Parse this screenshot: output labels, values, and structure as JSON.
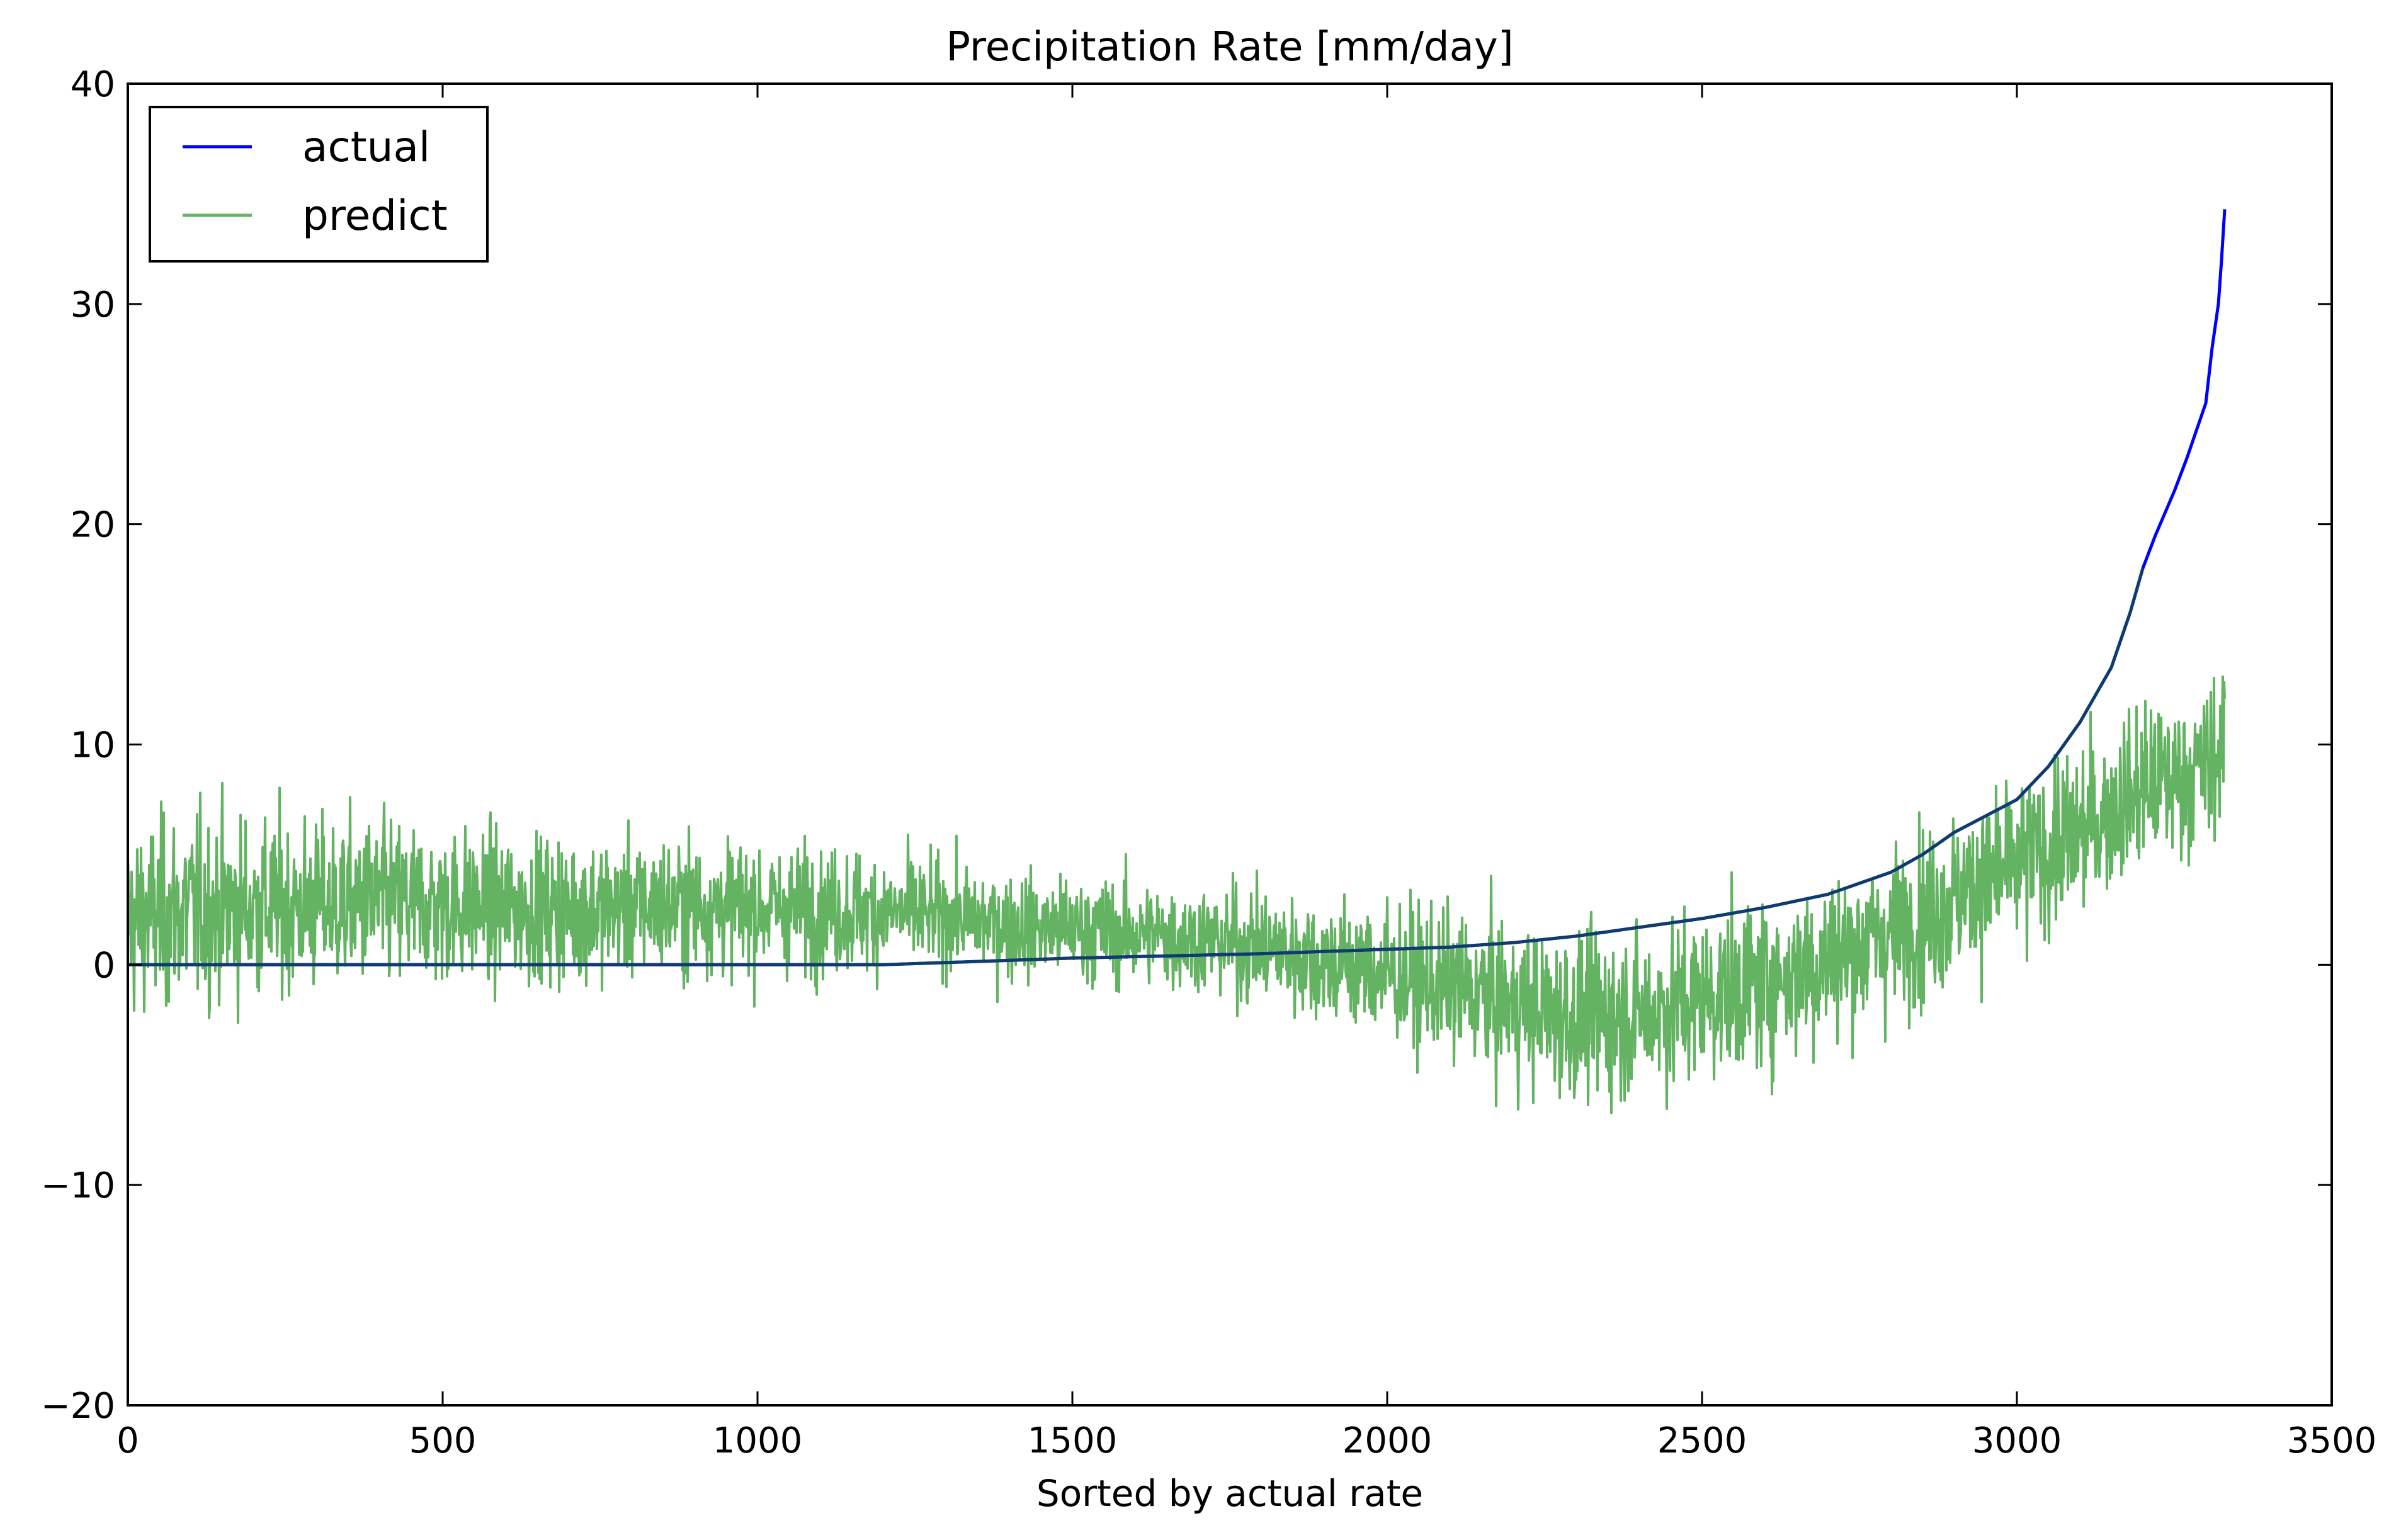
{
  "chart_data": {
    "type": "line",
    "title": "Precipitation Rate [mm/day]",
    "xlabel": "Sorted by actual rate",
    "ylabel": "",
    "xlim": [
      0,
      3500
    ],
    "ylim": [
      -20,
      40
    ],
    "xticks": [
      0,
      500,
      1000,
      1500,
      2000,
      2500,
      3000,
      3500
    ],
    "xtick_labels": [
      "0",
      "500",
      "1000",
      "1500",
      "2000",
      "2500",
      "3000",
      "3500"
    ],
    "yticks": [
      -20,
      -10,
      0,
      10,
      20,
      30,
      40
    ],
    "ytick_labels": [
      "−20",
      "−10",
      "0",
      "10",
      "20",
      "30",
      "40"
    ],
    "grid": false,
    "legend_position": "top-left",
    "series": [
      {
        "name": "actual",
        "color": "#0000ff",
        "x": [
          0,
          1200,
          1300,
          1500,
          1800,
          2000,
          2100,
          2200,
          2300,
          2400,
          2500,
          2600,
          2700,
          2800,
          2850,
          2900,
          3000,
          3050,
          3100,
          3150,
          3180,
          3200,
          3220,
          3250,
          3270,
          3300,
          3310,
          3320,
          3325,
          3330
        ],
        "values": [
          0,
          0,
          0.1,
          0.3,
          0.5,
          0.7,
          0.8,
          1.0,
          1.3,
          1.7,
          2.1,
          2.6,
          3.2,
          4.2,
          5.0,
          6.0,
          7.5,
          9.0,
          11.0,
          13.5,
          16.0,
          18.0,
          19.5,
          21.5,
          23.0,
          25.5,
          28.0,
          30.0,
          32.0,
          34.3
        ]
      },
      {
        "name": "predict",
        "color": "#63b363",
        "x": [
          0,
          100,
          200,
          300,
          400,
          500,
          600,
          700,
          800,
          900,
          1000,
          1100,
          1200,
          1300,
          1400,
          1500,
          1600,
          1700,
          1800,
          1900,
          2000,
          2100,
          2200,
          2300,
          2400,
          2500,
          2600,
          2700,
          2800,
          2900,
          3000,
          3100,
          3200,
          3300,
          3330
        ],
        "values": [
          2.0,
          2.5,
          2.6,
          2.7,
          2.8,
          2.7,
          2.6,
          2.5,
          2.6,
          2.7,
          2.6,
          2.5,
          2.4,
          2.2,
          1.8,
          1.6,
          1.4,
          1.2,
          0.8,
          0.2,
          -0.4,
          -1.0,
          -1.8,
          -2.5,
          -2.2,
          -1.5,
          -0.8,
          0.2,
          1.5,
          3.0,
          4.5,
          6.0,
          8.0,
          9.0,
          10.0
        ],
        "band": [
          9.0,
          9.0,
          8.5,
          8.0,
          8.0,
          7.5,
          7.0,
          7.0,
          6.5,
          6.5,
          6.0,
          6.0,
          5.5,
          5.0,
          5.0,
          5.0,
          5.0,
          5.0,
          5.5,
          6.0,
          6.5,
          7.0,
          7.5,
          8.0,
          8.0,
          8.0,
          8.0,
          8.0,
          8.0,
          8.0,
          8.0,
          8.0,
          7.5,
          7.5,
          7.5
        ]
      }
    ]
  }
}
